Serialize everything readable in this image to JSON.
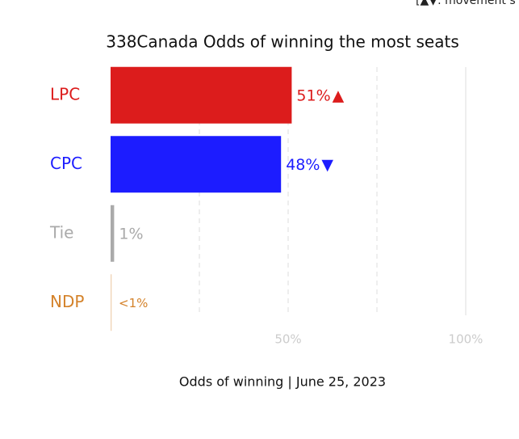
{
  "chart_data": {
    "type": "hbar",
    "note": "[▲▼: movement s",
    "title": "338Canada Odds of winning the most seats",
    "x_label": "Odds of winning | June 25, 2023",
    "categories": [
      "LPC",
      "CPC",
      "Tie",
      "NDP"
    ],
    "values": [
      51,
      48,
      1,
      0.3
    ],
    "value_labels": [
      "51%",
      "48%",
      "1%",
      "<1%"
    ],
    "movement": [
      "▲",
      "▼",
      null,
      null
    ],
    "colors": [
      "#dc1c1c",
      "#1c1cff",
      "#aaaaaa",
      "#d4822a"
    ],
    "xlim": [
      0,
      100
    ],
    "xticks": [
      {
        "value": 50,
        "label": "50%"
      },
      {
        "value": 100,
        "label": "100%"
      }
    ],
    "minor_xticks": [
      25,
      75
    ],
    "grid": true
  }
}
